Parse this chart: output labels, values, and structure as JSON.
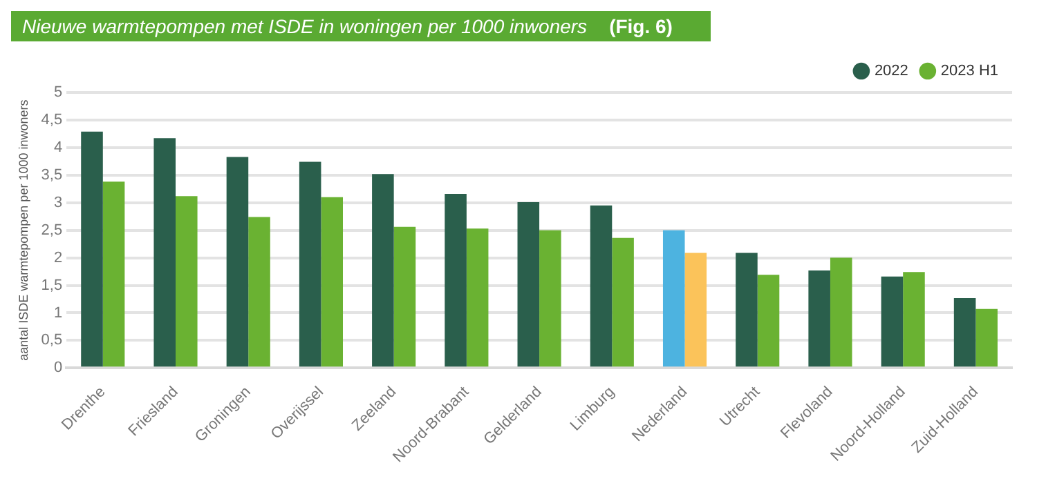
{
  "chart_data": {
    "type": "bar",
    "title": "Nieuwe warmtepompen met ISDE in woningen per 1000 inwoners",
    "annotations": [
      "(Fig. 6)"
    ],
    "ylabel": "aantal ISDE warmtepompen per 1000 inwoners",
    "categories": [
      "Drenthe",
      "Friesland",
      "Groningen",
      "Overijssel",
      "Zeeland",
      "Noord-Brabant",
      "Gelderland",
      "Limburg",
      "Nederland",
      "Utrecht",
      "Flevoland",
      "Noord-Holland",
      "Zuid-Holland"
    ],
    "series": [
      {
        "name": "2022",
        "color": "#2a5f4c",
        "colors": [
          "#2a5f4c",
          "#2a5f4c",
          "#2a5f4c",
          "#2a5f4c",
          "#2a5f4c",
          "#2a5f4c",
          "#2a5f4c",
          "#2a5f4c",
          "#4db3e0",
          "#2a5f4c",
          "#2a5f4c",
          "#2a5f4c",
          "#2a5f4c"
        ],
        "values": [
          4.29,
          4.17,
          3.83,
          3.74,
          3.52,
          3.16,
          3.01,
          2.95,
          2.5,
          2.09,
          1.77,
          1.66,
          1.27
        ]
      },
      {
        "name": "2023 H1",
        "color": "#6ab232",
        "colors": [
          "#6ab232",
          "#6ab232",
          "#6ab232",
          "#6ab232",
          "#6ab232",
          "#6ab232",
          "#6ab232",
          "#6ab232",
          "#fbc35a",
          "#6ab232",
          "#6ab232",
          "#6ab232",
          "#6ab232"
        ],
        "values": [
          3.38,
          3.12,
          2.74,
          3.1,
          2.56,
          2.53,
          2.5,
          2.36,
          2.09,
          1.69,
          2.0,
          1.74,
          1.07
        ]
      }
    ],
    "ylim": [
      0,
      5
    ],
    "yticks": [
      0,
      {
        "value": 0.5,
        "label": "0,5"
      },
      1,
      {
        "value": 1.5,
        "label": "1,5"
      },
      2,
      {
        "value": 2.5,
        "label": "2,5"
      },
      3,
      {
        "value": 3.5,
        "label": "3,5"
      },
      4,
      {
        "value": 4.5,
        "label": "4,5"
      },
      5
    ],
    "grid": "y",
    "legend": "top right"
  }
}
